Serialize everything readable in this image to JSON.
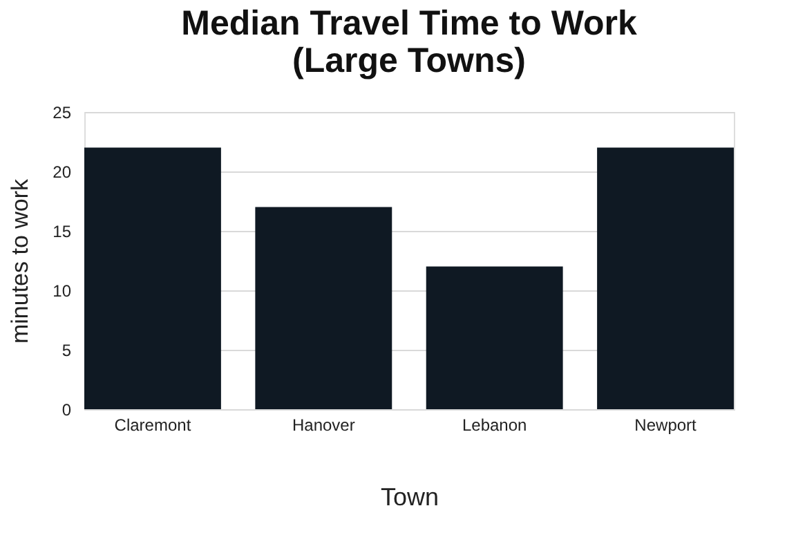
{
  "chart_data": {
    "type": "bar",
    "title": "Median Travel Time to Work\n(Large Towns)",
    "xlabel": "Town",
    "ylabel": "minutes to work",
    "categories": [
      "Claremont",
      "Hanover",
      "Lebanon",
      "Newport"
    ],
    "values": [
      22,
      17,
      12,
      22
    ],
    "color": "#0f1923",
    "ylim": [
      0,
      25
    ],
    "yticks": [
      0,
      5,
      10,
      15,
      20,
      25
    ],
    "grid": "y"
  }
}
